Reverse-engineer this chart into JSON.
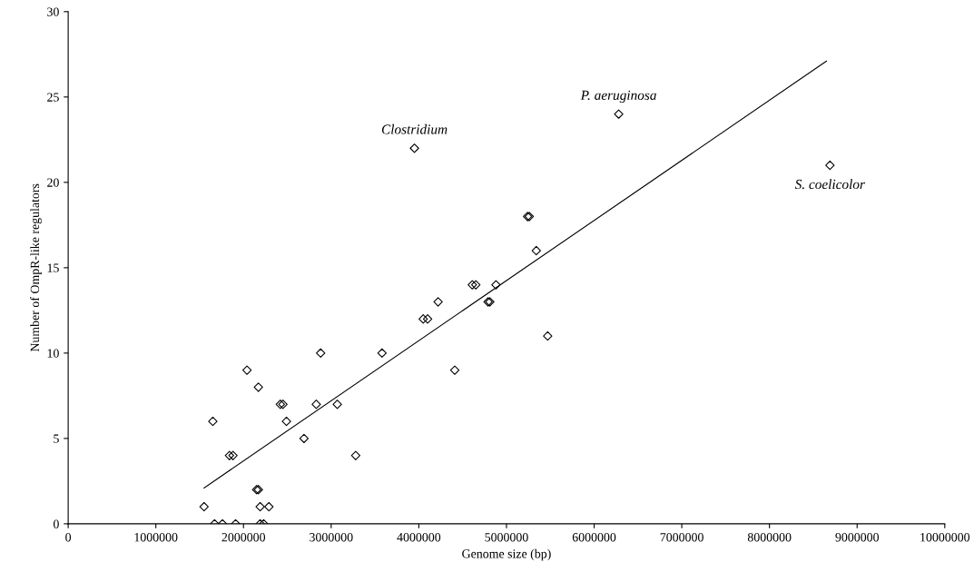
{
  "chart_data": {
    "type": "scatter",
    "xlabel": "Genome size (bp)",
    "ylabel": "Number of OmpR-like regulators",
    "xlim": [
      0,
      10000000
    ],
    "xticks": [
      0,
      1000000,
      2000000,
      3000000,
      4000000,
      5000000,
      6000000,
      7000000,
      8000000,
      9000000,
      10000000
    ],
    "ylim": [
      0,
      30
    ],
    "yticks": [
      0,
      5,
      10,
      15,
      20,
      25,
      30
    ],
    "grid": false,
    "legend": false,
    "series": [
      {
        "marker": "diamond",
        "color": "#000000",
        "x": [
          1550000,
          2190000,
          2290000,
          2150000,
          2170000,
          1670000,
          1760000,
          1910000,
          2190000,
          2230000,
          1840000,
          1880000,
          3280000,
          2690000,
          1650000,
          2490000,
          2420000,
          2450000,
          2830000,
          3070000,
          2170000,
          2040000,
          2880000,
          3580000,
          3950000,
          5240000,
          5260000,
          5340000,
          4610000,
          4650000,
          4880000,
          4220000,
          4790000,
          4810000,
          4050000,
          4100000,
          5470000,
          4410000,
          6280000,
          8690000
        ],
        "values": [
          1,
          1,
          1,
          2,
          2,
          0,
          0,
          0,
          0,
          0,
          4,
          4,
          4,
          5,
          6,
          6,
          7,
          7,
          7,
          7,
          8,
          9,
          10,
          10,
          22,
          18,
          18,
          16,
          14,
          14,
          14,
          13,
          13,
          13,
          12,
          12,
          11,
          9,
          24,
          21
        ]
      },
      {
        "type": "line",
        "marker": "none",
        "color": "#000000",
        "x": [
          1550000,
          8650000
        ],
        "values": [
          2.1,
          27.1
        ]
      }
    ],
    "annotations": [
      {
        "text": "Clostridium",
        "x": 3950000,
        "y": 22
      },
      {
        "text": "P. aeruginosa",
        "x": 6280000,
        "y": 24
      },
      {
        "text": "S. coelicolor",
        "x": 8690000,
        "y": 21
      }
    ]
  }
}
